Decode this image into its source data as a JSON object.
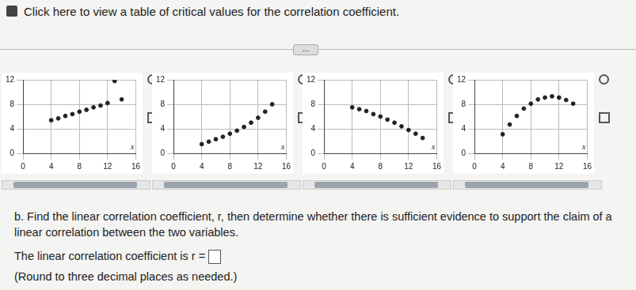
{
  "header": {
    "text": "Click here to view a table of critical values for the correlation coefficient."
  },
  "expand_button": "...",
  "chart_data": [
    {
      "type": "scatter",
      "xlabel": "x",
      "x": [
        4,
        5,
        6,
        7,
        8,
        9,
        10,
        11,
        12,
        13,
        14
      ],
      "values": [
        5.4,
        5.7,
        6.1,
        6.4,
        6.8,
        7.1,
        7.5,
        7.8,
        8.2,
        11.8,
        8.8
      ],
      "xlim": [
        0,
        16
      ],
      "xticks": [
        0,
        4,
        8,
        12,
        16
      ],
      "ylim": [
        0,
        12
      ],
      "yticks": [
        0,
        4,
        8,
        12
      ],
      "grid": true,
      "color": "#222222",
      "marker": "circle"
    },
    {
      "type": "scatter",
      "xlabel": "x",
      "x": [
        4,
        5,
        6,
        7,
        8,
        9,
        10,
        11,
        12,
        13,
        14
      ],
      "values": [
        1.5,
        1.9,
        2.3,
        2.7,
        3.2,
        3.7,
        4.3,
        5.0,
        5.8,
        6.8,
        8.0
      ],
      "xlim": [
        0,
        16
      ],
      "xticks": [
        0,
        4,
        8,
        12,
        16
      ],
      "ylim": [
        0,
        12
      ],
      "yticks": [
        0,
        4,
        8,
        12
      ],
      "grid": true,
      "color": "#222222",
      "marker": "circle"
    },
    {
      "type": "scatter",
      "xlabel": "x",
      "x": [
        4,
        5,
        6,
        7,
        8,
        9,
        10,
        11,
        12,
        13,
        14
      ],
      "values": [
        7.5,
        7.2,
        6.9,
        6.4,
        6.0,
        5.5,
        5.0,
        4.4,
        3.8,
        3.2,
        2.5
      ],
      "xlim": [
        0,
        16
      ],
      "xticks": [
        0,
        4,
        8,
        12,
        16
      ],
      "ylim": [
        0,
        12
      ],
      "yticks": [
        0,
        4,
        8,
        12
      ],
      "grid": true,
      "color": "#222222",
      "marker": "circle"
    },
    {
      "type": "scatter",
      "xlabel": "x",
      "x": [
        4,
        5,
        6,
        7,
        8,
        9,
        10,
        11,
        12,
        13,
        14
      ],
      "values": [
        3.1,
        4.7,
        6.1,
        7.3,
        8.1,
        8.8,
        9.1,
        9.3,
        9.1,
        8.7,
        8.1
      ],
      "xlim": [
        0,
        16
      ],
      "xticks": [
        0,
        4,
        8,
        12,
        16
      ],
      "ylim": [
        0,
        12
      ],
      "yticks": [
        0,
        4,
        8,
        12
      ],
      "grid": true,
      "color": "#222222",
      "marker": "circle"
    }
  ],
  "question": {
    "text": "b. Find the linear correlation coefficient, r, then determine whether there is sufficient evidence to support the claim of a linear correlation between the two variables.",
    "answer_prompt": "The linear correlation coefficient is r =",
    "note": "(Round to three decimal places as needed.)"
  }
}
